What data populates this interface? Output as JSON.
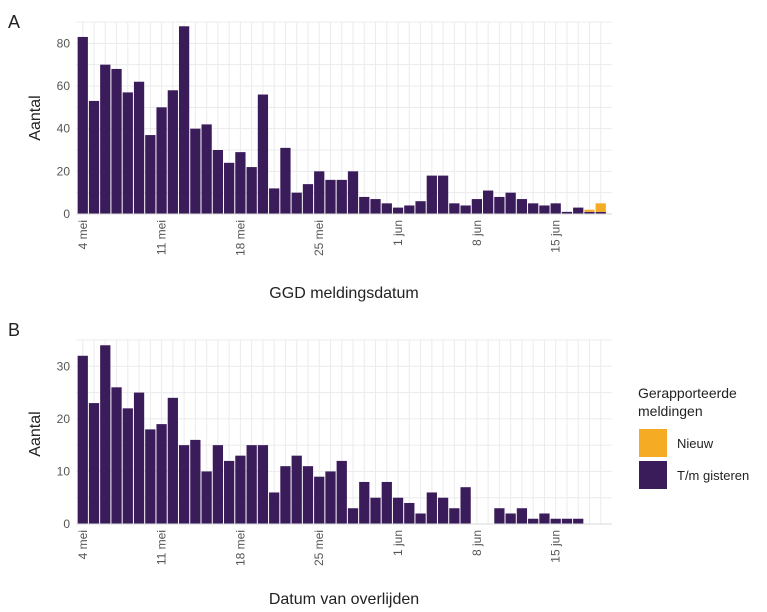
{
  "colors": {
    "t_m_gisteren": "#3b1c5a",
    "nieuw": "#f5ac24",
    "grid": "#ebebeb"
  },
  "legend": {
    "title_line1": "Gerapporteerde",
    "title_line2": "meldingen",
    "items": [
      {
        "label": "Nieuw",
        "color": "#f5ac24"
      },
      {
        "label": "T/m gisteren",
        "color": "#3b1c5a"
      }
    ],
    "placement": "right"
  },
  "chart_data": [
    {
      "type": "bar",
      "panel": "A",
      "xlabel": "GGD meldingsdatum",
      "ylabel": "Aantal",
      "ylim": [
        0,
        90
      ],
      "yticks": [
        0,
        20,
        40,
        60,
        80
      ],
      "grid": true,
      "x_tick_labels": [
        "4 mei",
        "11 mei",
        "18 mei",
        "25 mei",
        "1 jun",
        "8 jun",
        "15 jun"
      ],
      "x_tick_dates": [
        "2020-05-04",
        "2020-05-11",
        "2020-05-18",
        "2020-05-25",
        "2020-06-01",
        "2020-06-08",
        "2020-06-15"
      ],
      "dates": [
        "2020-05-04",
        "2020-05-05",
        "2020-05-06",
        "2020-05-07",
        "2020-05-08",
        "2020-05-09",
        "2020-05-10",
        "2020-05-11",
        "2020-05-12",
        "2020-05-13",
        "2020-05-14",
        "2020-05-15",
        "2020-05-16",
        "2020-05-17",
        "2020-05-18",
        "2020-05-19",
        "2020-05-20",
        "2020-05-21",
        "2020-05-22",
        "2020-05-23",
        "2020-05-24",
        "2020-05-25",
        "2020-05-26",
        "2020-05-27",
        "2020-05-28",
        "2020-05-29",
        "2020-05-30",
        "2020-05-31",
        "2020-06-01",
        "2020-06-02",
        "2020-06-03",
        "2020-06-04",
        "2020-06-05",
        "2020-06-06",
        "2020-06-07",
        "2020-06-08",
        "2020-06-09",
        "2020-06-10",
        "2020-06-11",
        "2020-06-12",
        "2020-06-13",
        "2020-06-14",
        "2020-06-15",
        "2020-06-16",
        "2020-06-17",
        "2020-06-18",
        "2020-06-19"
      ],
      "series": [
        {
          "name": "T/m gisteren",
          "values": [
            83,
            53,
            70,
            68,
            57,
            62,
            37,
            50,
            58,
            88,
            40,
            42,
            30,
            24,
            29,
            22,
            56,
            12,
            31,
            10,
            14,
            20,
            16,
            16,
            20,
            8,
            7,
            5,
            3,
            4,
            6,
            18,
            18,
            5,
            4,
            7,
            11,
            8,
            10,
            7,
            5,
            4,
            5,
            1,
            3,
            1,
            1
          ]
        },
        {
          "name": "Nieuw",
          "values": [
            0,
            0,
            0,
            0,
            0,
            0,
            0,
            0,
            0,
            0,
            0,
            0,
            0,
            0,
            0,
            0,
            0,
            0,
            0,
            0,
            0,
            0,
            0,
            0,
            0,
            0,
            0,
            0,
            0,
            0,
            0,
            0,
            0,
            0,
            0,
            0,
            0,
            0,
            0,
            0,
            0,
            0,
            0,
            0,
            0,
            1,
            4
          ]
        }
      ]
    },
    {
      "type": "bar",
      "panel": "B",
      "xlabel": "Datum van overlijden",
      "ylabel": "Aantal",
      "ylim": [
        0,
        35
      ],
      "yticks": [
        0,
        10,
        20,
        30
      ],
      "grid": true,
      "x_tick_labels": [
        "4 mei",
        "11 mei",
        "18 mei",
        "25 mei",
        "1 jun",
        "8 jun",
        "15 jun"
      ],
      "x_tick_dates": [
        "2020-05-04",
        "2020-05-11",
        "2020-05-18",
        "2020-05-25",
        "2020-06-01",
        "2020-06-08",
        "2020-06-15"
      ],
      "dates": [
        "2020-05-04",
        "2020-05-05",
        "2020-05-06",
        "2020-05-07",
        "2020-05-08",
        "2020-05-09",
        "2020-05-10",
        "2020-05-11",
        "2020-05-12",
        "2020-05-13",
        "2020-05-14",
        "2020-05-15",
        "2020-05-16",
        "2020-05-17",
        "2020-05-18",
        "2020-05-19",
        "2020-05-20",
        "2020-05-21",
        "2020-05-22",
        "2020-05-23",
        "2020-05-24",
        "2020-05-25",
        "2020-05-26",
        "2020-05-27",
        "2020-05-28",
        "2020-05-29",
        "2020-05-30",
        "2020-05-31",
        "2020-06-01",
        "2020-06-02",
        "2020-06-03",
        "2020-06-04",
        "2020-06-05",
        "2020-06-06",
        "2020-06-07",
        "2020-06-08",
        "2020-06-09",
        "2020-06-10",
        "2020-06-11",
        "2020-06-12",
        "2020-06-13",
        "2020-06-14",
        "2020-06-15",
        "2020-06-16",
        "2020-06-17",
        "2020-06-18",
        "2020-06-19"
      ],
      "series": [
        {
          "name": "T/m gisteren",
          "values": [
            32,
            23,
            34,
            26,
            22,
            25,
            18,
            19,
            24,
            15,
            16,
            10,
            15,
            12,
            13,
            15,
            15,
            6,
            11,
            13,
            11,
            9,
            10,
            12,
            3,
            8,
            5,
            8,
            5,
            4,
            2,
            6,
            5,
            3,
            7,
            0,
            0,
            3,
            2,
            3,
            1,
            2,
            1,
            1,
            1,
            0,
            0
          ]
        },
        {
          "name": "Nieuw",
          "values": [
            0,
            0,
            0,
            0,
            0,
            0,
            0,
            0,
            0,
            0,
            0,
            0,
            0,
            0,
            0,
            0,
            0,
            0,
            0,
            0,
            0,
            0,
            0,
            0,
            0,
            0,
            0,
            0,
            0,
            0,
            0,
            0,
            0,
            0,
            0,
            0,
            0,
            0,
            0,
            0,
            0,
            0,
            0,
            0,
            0,
            0,
            0
          ]
        }
      ]
    }
  ]
}
